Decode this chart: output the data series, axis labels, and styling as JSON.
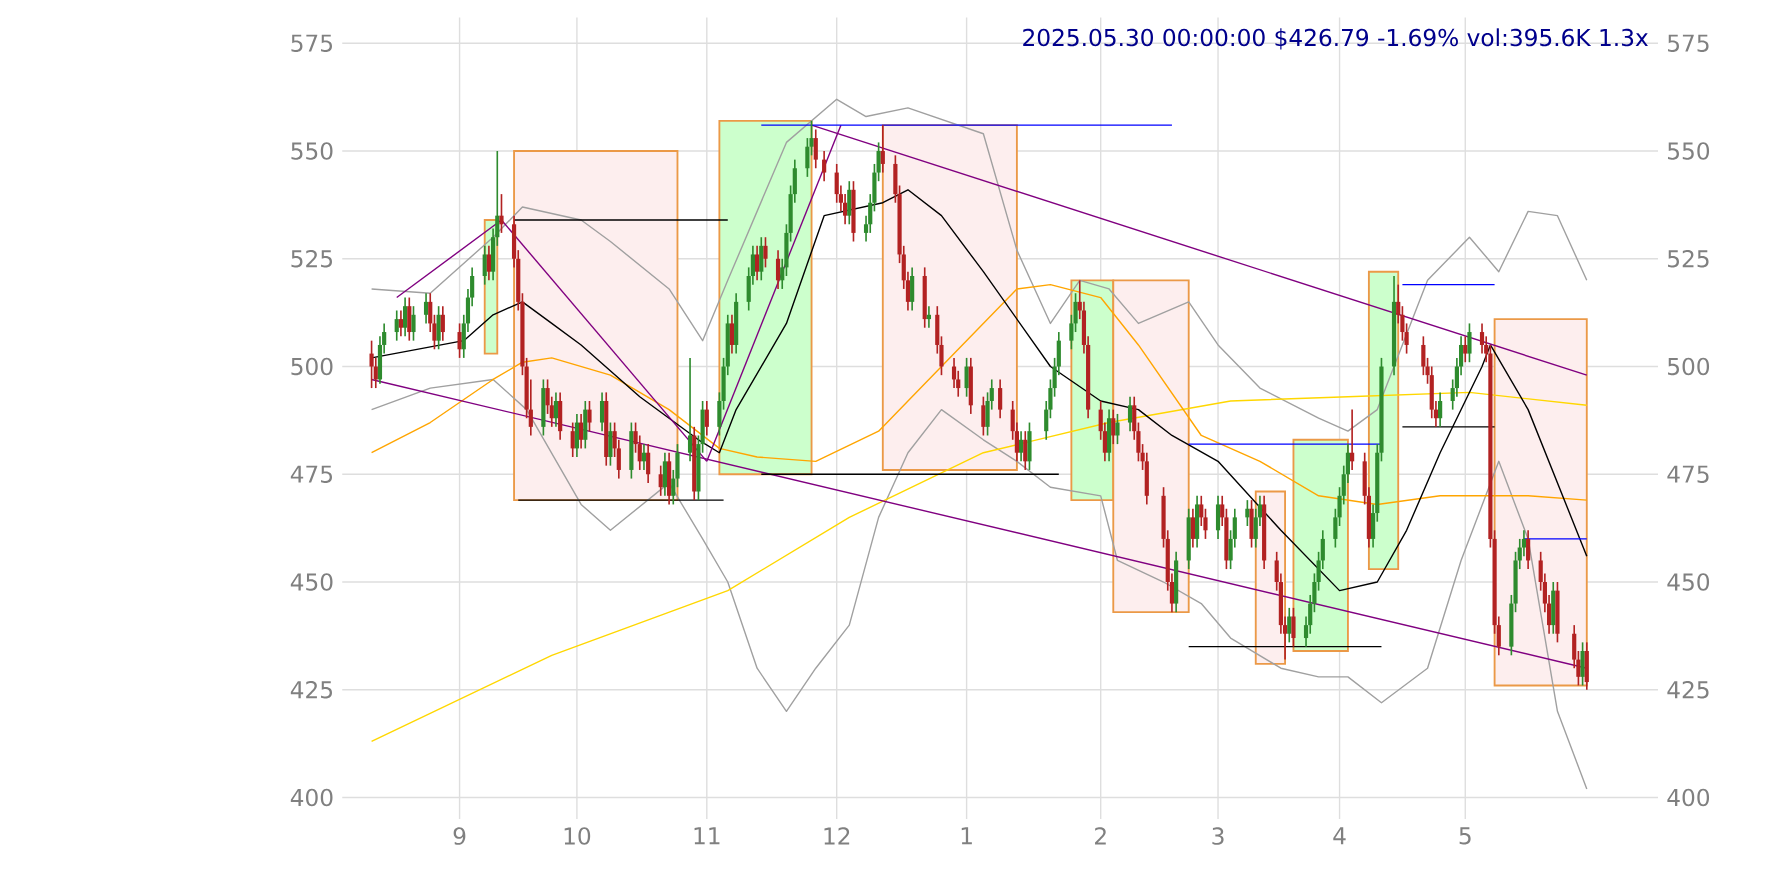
{
  "chart_data": {
    "type": "candlestick",
    "title": "2025.05.30 00:00:00 $426.79 -1.69% vol:395.6K 1.3x",
    "x": [
      "2024-08-13",
      "2024-08-14",
      "2024-08-15",
      "2024-08-16",
      "2024-08-19",
      "2024-08-20",
      "2024-08-21",
      "2024-08-22",
      "2024-08-23",
      "2024-08-26",
      "2024-08-27",
      "2024-08-28",
      "2024-08-29",
      "2024-08-30",
      "2024-09-03",
      "2024-09-04",
      "2024-09-05",
      "2024-09-06",
      "2024-09-09",
      "2024-09-10",
      "2024-09-11",
      "2024-09-12",
      "2024-09-13",
      "2024-09-16",
      "2024-09-17",
      "2024-09-18",
      "2024-09-19",
      "2024-09-20",
      "2024-09-23",
      "2024-09-24",
      "2024-09-25",
      "2024-09-26",
      "2024-09-27",
      "2024-09-30",
      "2024-10-01",
      "2024-10-02",
      "2024-10-03",
      "2024-10-04",
      "2024-10-07",
      "2024-10-08",
      "2024-10-09",
      "2024-10-10",
      "2024-10-11",
      "2024-10-14",
      "2024-10-15",
      "2024-10-16",
      "2024-10-17",
      "2024-10-18",
      "2024-10-21",
      "2024-10-22",
      "2024-10-23",
      "2024-10-24",
      "2024-10-25",
      "2024-10-28",
      "2024-10-29",
      "2024-10-30",
      "2024-10-31",
      "2024-11-01",
      "2024-11-04",
      "2024-11-05",
      "2024-11-06",
      "2024-11-07",
      "2024-11-08",
      "2024-11-11",
      "2024-11-12",
      "2024-11-13",
      "2024-11-14",
      "2024-11-15",
      "2024-11-18",
      "2024-11-19",
      "2024-11-20",
      "2024-11-21",
      "2024-11-22",
      "2024-11-25",
      "2024-11-26",
      "2024-11-27",
      "2024-11-29",
      "2024-12-02",
      "2024-12-03",
      "2024-12-04",
      "2024-12-05",
      "2024-12-06",
      "2024-12-09",
      "2024-12-10",
      "2024-12-11",
      "2024-12-12",
      "2024-12-13",
      "2024-12-16",
      "2024-12-17",
      "2024-12-18",
      "2024-12-19",
      "2024-12-20",
      "2024-12-23",
      "2024-12-24",
      "2024-12-26",
      "2024-12-27",
      "2024-12-30",
      "2024-12-31",
      "2025-01-02",
      "2025-01-03",
      "2025-01-06",
      "2025-01-07",
      "2025-01-08",
      "2025-01-10",
      "2025-01-13",
      "2025-01-14",
      "2025-01-15",
      "2025-01-16",
      "2025-01-17",
      "2025-01-21",
      "2025-01-22",
      "2025-01-23",
      "2025-01-24",
      "2025-01-27",
      "2025-01-28",
      "2025-01-29",
      "2025-01-30",
      "2025-01-31",
      "2025-02-03",
      "2025-02-04",
      "2025-02-05",
      "2025-02-06",
      "2025-02-07",
      "2025-02-10",
      "2025-02-11",
      "2025-02-12",
      "2025-02-13",
      "2025-02-14",
      "2025-02-18",
      "2025-02-19",
      "2025-02-20",
      "2025-02-21",
      "2025-02-24",
      "2025-02-25",
      "2025-02-26",
      "2025-02-27",
      "2025-02-28",
      "2025-03-03",
      "2025-03-04",
      "2025-03-05",
      "2025-03-06",
      "2025-03-07",
      "2025-03-10",
      "2025-03-11",
      "2025-03-12",
      "2025-03-13",
      "2025-03-14",
      "2025-03-17",
      "2025-03-18",
      "2025-03-19",
      "2025-03-20",
      "2025-03-21",
      "2025-03-24",
      "2025-03-25",
      "2025-03-26",
      "2025-03-27",
      "2025-03-28",
      "2025-03-31",
      "2025-04-01",
      "2025-04-02",
      "2025-04-03",
      "2025-04-04",
      "2025-04-07",
      "2025-04-08",
      "2025-04-09",
      "2025-04-10",
      "2025-04-11",
      "2025-04-14",
      "2025-04-15",
      "2025-04-16",
      "2025-04-17",
      "2025-04-21",
      "2025-04-22",
      "2025-04-23",
      "2025-04-24",
      "2025-04-25",
      "2025-04-28",
      "2025-04-29",
      "2025-04-30",
      "2025-05-01",
      "2025-05-02",
      "2025-05-05",
      "2025-05-06",
      "2025-05-07",
      "2025-05-08",
      "2025-05-09",
      "2025-05-12",
      "2025-05-13",
      "2025-05-14",
      "2025-05-15",
      "2025-05-16",
      "2025-05-19",
      "2025-05-20",
      "2025-05-21",
      "2025-05-22",
      "2025-05-23",
      "2025-05-27",
      "2025-05-28",
      "2025-05-29",
      "2025-05-30"
    ],
    "xticks": [
      {
        "value": "2024-09-03",
        "label": "9"
      },
      {
        "value": "2024-10-01",
        "label": "10"
      },
      {
        "value": "2024-11-01",
        "label": "11"
      },
      {
        "value": "2024-12-02",
        "label": "12"
      },
      {
        "value": "2025-01-02",
        "label": "1"
      },
      {
        "value": "2025-02-03",
        "label": "2"
      },
      {
        "value": "2025-03-03",
        "label": "3"
      },
      {
        "value": "2025-04-01",
        "label": "4"
      },
      {
        "value": "2025-05-01",
        "label": "5"
      }
    ],
    "ohlc": [
      [
        503,
        506,
        495,
        500
      ],
      [
        500,
        502,
        495,
        497
      ],
      [
        497,
        507,
        496,
        505
      ],
      [
        505,
        510,
        503,
        508
      ],
      [
        508,
        513,
        506,
        511
      ],
      [
        511,
        513,
        507,
        509
      ],
      [
        509,
        516,
        507,
        514
      ],
      [
        514,
        516,
        506,
        508
      ],
      [
        508,
        514,
        506,
        512
      ],
      [
        512,
        517,
        510,
        515
      ],
      [
        515,
        517,
        508,
        510
      ],
      [
        510,
        512,
        504,
        506
      ],
      [
        506,
        514,
        504,
        512
      ],
      [
        512,
        514,
        506,
        508
      ],
      [
        508,
        510,
        502,
        504
      ],
      [
        504,
        512,
        502,
        510
      ],
      [
        510,
        518,
        508,
        516
      ],
      [
        516,
        523,
        514,
        521
      ],
      [
        521,
        528,
        519,
        526
      ],
      [
        526,
        528,
        520,
        522
      ],
      [
        522,
        532,
        520,
        530
      ],
      [
        530,
        550,
        528,
        535
      ],
      [
        535,
        540,
        531,
        533
      ],
      [
        533,
        535,
        523,
        525
      ],
      [
        525,
        527,
        513,
        515
      ],
      [
        515,
        517,
        498,
        500
      ],
      [
        500,
        502,
        488,
        490
      ],
      [
        490,
        497,
        484,
        486
      ],
      [
        486,
        497,
        484,
        495
      ],
      [
        495,
        497,
        489,
        491
      ],
      [
        491,
        493,
        486,
        488
      ],
      [
        488,
        494,
        486,
        492
      ],
      [
        492,
        494,
        483,
        485
      ],
      [
        485,
        487,
        479,
        481
      ],
      [
        481,
        489,
        479,
        487
      ],
      [
        487,
        489,
        481,
        483
      ],
      [
        483,
        492,
        481,
        490
      ],
      [
        490,
        492,
        485,
        487
      ],
      [
        487,
        494,
        485,
        492
      ],
      [
        492,
        494,
        477,
        479
      ],
      [
        479,
        487,
        477,
        485
      ],
      [
        485,
        487,
        479,
        481
      ],
      [
        481,
        483,
        474,
        476
      ],
      [
        476,
        487,
        474,
        485
      ],
      [
        485,
        487,
        480,
        482
      ],
      [
        482,
        484,
        476,
        478
      ],
      [
        478,
        482,
        476,
        480
      ],
      [
        480,
        482,
        473,
        475
      ],
      [
        475,
        477,
        470,
        472
      ],
      [
        472,
        480,
        470,
        478
      ],
      [
        478,
        480,
        468,
        470
      ],
      [
        470,
        476,
        468,
        474
      ],
      [
        474,
        482,
        472,
        480
      ],
      [
        480,
        502,
        478,
        484
      ],
      [
        484,
        486,
        469,
        471
      ],
      [
        471,
        484,
        469,
        482
      ],
      [
        482,
        492,
        480,
        490
      ],
      [
        490,
        492,
        484,
        486
      ],
      [
        486,
        494,
        484,
        492
      ],
      [
        492,
        502,
        490,
        500
      ],
      [
        500,
        512,
        498,
        510
      ],
      [
        510,
        512,
        503,
        505
      ],
      [
        505,
        517,
        503,
        515
      ],
      [
        515,
        523,
        513,
        521
      ],
      [
        521,
        528,
        519,
        526
      ],
      [
        526,
        528,
        520,
        522
      ],
      [
        522,
        530,
        520,
        528
      ],
      [
        528,
        530,
        523,
        525
      ],
      [
        525,
        527,
        518,
        520
      ],
      [
        520,
        525,
        518,
        523
      ],
      [
        523,
        533,
        521,
        531
      ],
      [
        531,
        542,
        529,
        540
      ],
      [
        540,
        548,
        538,
        546
      ],
      [
        546,
        553,
        544,
        551
      ],
      [
        551,
        557,
        549,
        553
      ],
      [
        553,
        555,
        546,
        548
      ],
      [
        548,
        550,
        543,
        545
      ],
      [
        545,
        547,
        538,
        540
      ],
      [
        540,
        542,
        536,
        538
      ],
      [
        538,
        540,
        533,
        535
      ],
      [
        535,
        543,
        533,
        541
      ],
      [
        541,
        543,
        529,
        531
      ],
      [
        531,
        535,
        529,
        533
      ],
      [
        533,
        540,
        531,
        538
      ],
      [
        538,
        547,
        536,
        545
      ],
      [
        545,
        552,
        543,
        550
      ],
      [
        550,
        556,
        545,
        547
      ],
      [
        547,
        549,
        538,
        540
      ],
      [
        540,
        542,
        524,
        526
      ],
      [
        526,
        528,
        518,
        520
      ],
      [
        520,
        522,
        513,
        515
      ],
      [
        515,
        523,
        513,
        521
      ],
      [
        521,
        523,
        509,
        511
      ],
      [
        511,
        514,
        509,
        512
      ],
      [
        512,
        514,
        503,
        505
      ],
      [
        505,
        507,
        498,
        500
      ],
      [
        500,
        502,
        495,
        497
      ],
      [
        497,
        499,
        493,
        495
      ],
      [
        495,
        502,
        493,
        500
      ],
      [
        500,
        502,
        489,
        491
      ],
      [
        491,
        493,
        484,
        486
      ],
      [
        486,
        494,
        484,
        492
      ],
      [
        492,
        497,
        490,
        495
      ],
      [
        495,
        497,
        488,
        490
      ],
      [
        490,
        492,
        483,
        485
      ],
      [
        485,
        487,
        478,
        480
      ],
      [
        480,
        485,
        478,
        483
      ],
      [
        483,
        485,
        476,
        478
      ],
      [
        478,
        487,
        476,
        485
      ],
      [
        485,
        492,
        483,
        490
      ],
      [
        490,
        497,
        488,
        495
      ],
      [
        495,
        502,
        493,
        500
      ],
      [
        500,
        508,
        498,
        506
      ],
      [
        506,
        512,
        504,
        510
      ],
      [
        510,
        517,
        508,
        515
      ],
      [
        515,
        520,
        511,
        513
      ],
      [
        513,
        515,
        503,
        505
      ],
      [
        505,
        507,
        488,
        490
      ],
      [
        490,
        492,
        483,
        485
      ],
      [
        485,
        487,
        478,
        480
      ],
      [
        480,
        490,
        478,
        488
      ],
      [
        488,
        490,
        482,
        484
      ],
      [
        484,
        489,
        482,
        487
      ],
      [
        487,
        493,
        485,
        491
      ],
      [
        491,
        493,
        483,
        485
      ],
      [
        485,
        487,
        478,
        480
      ],
      [
        480,
        482,
        476,
        478
      ],
      [
        478,
        480,
        468,
        470
      ],
      [
        470,
        472,
        458,
        460
      ],
      [
        460,
        462,
        448,
        450
      ],
      [
        450,
        452,
        443,
        445
      ],
      [
        445,
        457,
        443,
        455
      ],
      [
        455,
        467,
        453,
        465
      ],
      [
        465,
        467,
        458,
        460
      ],
      [
        460,
        470,
        458,
        468
      ],
      [
        468,
        470,
        463,
        465
      ],
      [
        465,
        467,
        460,
        462
      ],
      [
        462,
        470,
        460,
        468
      ],
      [
        468,
        470,
        463,
        465
      ],
      [
        465,
        467,
        453,
        455
      ],
      [
        455,
        462,
        453,
        460
      ],
      [
        460,
        467,
        458,
        465
      ],
      [
        465,
        469,
        463,
        467
      ],
      [
        467,
        469,
        458,
        460
      ],
      [
        460,
        467,
        458,
        465
      ],
      [
        465,
        470,
        463,
        468
      ],
      [
        468,
        470,
        453,
        455
      ],
      [
        455,
        457,
        448,
        450
      ],
      [
        450,
        452,
        438,
        440
      ],
      [
        440,
        442,
        432,
        438
      ],
      [
        438,
        444,
        436,
        442
      ],
      [
        442,
        444,
        435,
        437
      ],
      [
        437,
        442,
        435,
        440
      ],
      [
        440,
        447,
        438,
        445
      ],
      [
        445,
        452,
        443,
        450
      ],
      [
        450,
        457,
        448,
        455
      ],
      [
        455,
        462,
        453,
        460
      ],
      [
        460,
        467,
        458,
        465
      ],
      [
        465,
        472,
        463,
        470
      ],
      [
        470,
        477,
        468,
        475
      ],
      [
        475,
        482,
        473,
        480
      ],
      [
        480,
        490,
        476,
        478
      ],
      [
        478,
        480,
        468,
        470
      ],
      [
        470,
        472,
        458,
        460
      ],
      [
        460,
        468,
        458,
        466
      ],
      [
        466,
        482,
        464,
        480
      ],
      [
        480,
        502,
        478,
        500
      ],
      [
        500,
        521,
        498,
        515
      ],
      [
        515,
        519,
        510,
        512
      ],
      [
        512,
        514,
        506,
        508
      ],
      [
        508,
        510,
        503,
        505
      ],
      [
        505,
        507,
        498,
        500
      ],
      [
        500,
        502,
        496,
        498
      ],
      [
        498,
        500,
        488,
        490
      ],
      [
        490,
        492,
        486,
        488
      ],
      [
        488,
        494,
        486,
        492
      ],
      [
        492,
        497,
        490,
        495
      ],
      [
        495,
        502,
        493,
        500
      ],
      [
        500,
        507,
        498,
        505
      ],
      [
        505,
        507,
        501,
        503
      ],
      [
        503,
        510,
        501,
        508
      ],
      [
        508,
        510,
        503,
        505
      ],
      [
        505,
        507,
        501,
        503
      ],
      [
        503,
        505,
        458,
        460
      ],
      [
        460,
        462,
        438,
        440
      ],
      [
        440,
        442,
        433,
        435
      ],
      [
        435,
        447,
        433,
        445
      ],
      [
        445,
        457,
        443,
        455
      ],
      [
        455,
        460,
        453,
        458
      ],
      [
        458,
        462,
        456,
        460
      ],
      [
        460,
        462,
        453,
        455
      ],
      [
        455,
        457,
        448,
        450
      ],
      [
        450,
        452,
        443,
        445
      ],
      [
        445,
        447,
        438,
        440
      ],
      [
        440,
        450,
        438,
        448
      ],
      [
        448,
        450,
        436,
        438
      ],
      [
        438,
        440,
        430,
        432
      ],
      [
        432,
        434,
        426,
        428
      ],
      [
        428,
        436,
        426,
        434
      ],
      [
        434,
        436,
        425,
        426.79
      ]
    ],
    "colors": [
      "#b22222",
      "#b22222",
      "#2e8b2e",
      "#2e8b2e",
      "#2e8b2e",
      "#b22222",
      "#2e8b2e",
      "#b22222",
      "#2e8b2e",
      "#2e8b2e",
      "#b22222",
      "#b22222",
      "#2e8b2e",
      "#b22222",
      "#b22222",
      "#2e8b2e",
      "#2e8b2e",
      "#2e8b2e",
      "#2e8b2e",
      "#b22222",
      "#2e8b2e",
      "#2e8b2e",
      "#b22222",
      "#b22222",
      "#b22222",
      "#b22222",
      "#b22222",
      "#b22222",
      "#2e8b2e",
      "#b22222",
      "#b22222",
      "#2e8b2e",
      "#b22222",
      "#b22222",
      "#2e8b2e",
      "#b22222",
      "#2e8b2e",
      "#b22222",
      "#2e8b2e",
      "#b22222",
      "#2e8b2e",
      "#b22222",
      "#b22222",
      "#2e8b2e",
      "#b22222",
      "#b22222",
      "#2e8b2e",
      "#b22222",
      "#b22222",
      "#2e8b2e",
      "#b22222",
      "#2e8b2e",
      "#2e8b2e",
      "#2e8b2e",
      "#b22222",
      "#2e8b2e",
      "#2e8b2e",
      "#b22222",
      "#2e8b2e",
      "#2e8b2e",
      "#2e8b2e",
      "#b22222",
      "#2e8b2e",
      "#2e8b2e",
      "#2e8b2e",
      "#b22222",
      "#2e8b2e",
      "#b22222",
      "#b22222",
      "#2e8b2e",
      "#2e8b2e",
      "#2e8b2e",
      "#2e8b2e",
      "#2e8b2e",
      "#2e8b2e",
      "#b22222",
      "#b22222",
      "#b22222",
      "#b22222",
      "#b22222",
      "#2e8b2e",
      "#b22222",
      "#2e8b2e",
      "#2e8b2e",
      "#2e8b2e",
      "#2e8b2e",
      "#b22222",
      "#b22222",
      "#b22222",
      "#b22222",
      "#b22222",
      "#2e8b2e",
      "#b22222",
      "#2e8b2e",
      "#b22222",
      "#b22222",
      "#b22222",
      "#b22222",
      "#2e8b2e",
      "#b22222",
      "#b22222",
      "#2e8b2e",
      "#2e8b2e",
      "#b22222",
      "#b22222",
      "#b22222",
      "#2e8b2e",
      "#b22222",
      "#2e8b2e",
      "#2e8b2e",
      "#2e8b2e",
      "#2e8b2e",
      "#2e8b2e",
      "#2e8b2e",
      "#2e8b2e",
      "#b22222",
      "#b22222",
      "#b22222",
      "#b22222",
      "#b22222",
      "#2e8b2e",
      "#b22222",
      "#2e8b2e",
      "#2e8b2e",
      "#b22222",
      "#b22222",
      "#b22222",
      "#b22222",
      "#b22222",
      "#b22222",
      "#b22222",
      "#2e8b2e",
      "#2e8b2e",
      "#b22222",
      "#2e8b2e",
      "#b22222",
      "#b22222",
      "#2e8b2e",
      "#b22222",
      "#b22222",
      "#2e8b2e",
      "#2e8b2e",
      "#2e8b2e",
      "#b22222",
      "#2e8b2e",
      "#2e8b2e",
      "#b22222",
      "#b22222",
      "#b22222",
      "#b22222",
      "#2e8b2e",
      "#b22222",
      "#2e8b2e",
      "#2e8b2e",
      "#2e8b2e",
      "#2e8b2e",
      "#2e8b2e",
      "#2e8b2e",
      "#2e8b2e",
      "#2e8b2e",
      "#2e8b2e",
      "#b22222",
      "#b22222",
      "#b22222",
      "#2e8b2e",
      "#2e8b2e",
      "#2e8b2e",
      "#2e8b2e",
      "#b22222",
      "#b22222",
      "#b22222",
      "#b22222",
      "#b22222",
      "#b22222",
      "#b22222",
      "#2e8b2e",
      "#2e8b2e",
      "#2e8b2e",
      "#2e8b2e",
      "#b22222",
      "#2e8b2e",
      "#b22222",
      "#b22222",
      "#b22222",
      "#b22222",
      "#b22222",
      "#2e8b2e",
      "#2e8b2e",
      "#2e8b2e",
      "#2e8b2e",
      "#b22222",
      "#b22222",
      "#b22222",
      "#b22222",
      "#2e8b2e",
      "#b22222",
      "#b22222",
      "#b22222",
      "#2e8b2e",
      "#b22222"
    ],
    "series": [
      {
        "type": "line",
        "color": "#ccffcc",
        "x": [
          "2024-09-09",
          "2024-09-12"
        ],
        "lower": [
          503,
          503
        ],
        "upper": [
          534,
          534
        ],
        "values": [
          null,
          null
        ]
      },
      {
        "type": "line",
        "color": "#fdeeee",
        "x": [
          "2024-09-16",
          "2024-10-25"
        ],
        "lower": [
          469,
          469
        ],
        "upper": [
          550,
          550
        ],
        "values": [
          null,
          null
        ]
      },
      {
        "type": "line",
        "color": "#ccffcc",
        "x": [
          "2024-11-04",
          "2024-11-26"
        ],
        "lower": [
          475,
          475
        ],
        "upper": [
          557,
          557
        ],
        "values": [
          null,
          null
        ]
      },
      {
        "type": "line",
        "color": "#fdeeee",
        "x": [
          "2024-12-13",
          "2025-01-14"
        ],
        "lower": [
          476,
          476
        ],
        "upper": [
          556,
          556
        ],
        "values": [
          null,
          null
        ]
      },
      {
        "type": "line",
        "color": "#ccffcc",
        "x": [
          "2025-01-27",
          "2025-02-06"
        ],
        "lower": [
          469,
          469
        ],
        "upper": [
          520,
          520
        ],
        "values": [
          null,
          null
        ]
      },
      {
        "type": "line",
        "color": "#fdeeee",
        "x": [
          "2025-02-06",
          "2025-02-24"
        ],
        "lower": [
          443,
          443
        ],
        "upper": [
          520,
          520
        ],
        "values": [
          null,
          null
        ]
      },
      {
        "type": "line",
        "color": "#fdeeee",
        "x": [
          "2025-03-12",
          "2025-03-19"
        ],
        "lower": [
          431,
          431
        ],
        "upper": [
          471,
          471
        ],
        "values": [
          null,
          null
        ]
      },
      {
        "type": "line",
        "color": "#ccffcc",
        "x": [
          "2025-03-21",
          "2025-04-03"
        ],
        "lower": [
          434,
          434
        ],
        "upper": [
          483,
          483
        ],
        "values": [
          null,
          null
        ]
      },
      {
        "type": "line",
        "color": "#ccffcc",
        "x": [
          "2025-04-08",
          "2025-04-15"
        ],
        "lower": [
          453,
          453
        ],
        "upper": [
          522,
          522
        ],
        "values": [
          null,
          null
        ]
      },
      {
        "type": "line",
        "color": "#fdeeee",
        "x": [
          "2025-05-08",
          "2025-05-30"
        ],
        "lower": [
          426,
          426
        ],
        "upper": [
          511,
          511
        ],
        "values": [
          null,
          null
        ]
      },
      {
        "type": "line",
        "color": "#a0a0a0",
        "x": [
          "2024-08-13",
          "2024-08-27",
          "2024-09-11",
          "2024-09-18",
          "2024-10-02",
          "2024-10-09",
          "2024-10-23",
          "2024-10-31",
          "2024-11-06",
          "2024-11-20",
          "2024-12-02",
          "2024-12-09",
          "2024-12-19",
          "2025-01-06",
          "2025-01-14",
          "2025-01-22",
          "2025-01-29",
          "2025-02-05",
          "2025-02-12",
          "2025-02-24",
          "2025-03-03",
          "2025-03-13",
          "2025-03-27",
          "2025-04-03",
          "2025-04-10",
          "2025-04-22",
          "2025-05-02",
          "2025-05-09",
          "2025-05-16",
          "2025-05-23",
          "2025-05-30"
        ],
        "values": [
          518,
          517,
          530,
          537,
          534,
          529,
          518,
          506,
          520,
          552,
          562,
          558,
          560,
          554,
          527,
          510,
          520,
          518,
          510,
          515,
          505,
          495,
          488,
          485,
          490,
          520,
          530,
          522,
          536,
          535,
          520
        ]
      },
      {
        "type": "line",
        "color": "#a0a0a0",
        "x": [
          "2024-08-13",
          "2024-08-27",
          "2024-09-11",
          "2024-09-19",
          "2024-10-02",
          "2024-10-09",
          "2024-10-23",
          "2024-10-31",
          "2024-11-06",
          "2024-11-13",
          "2024-11-20",
          "2024-11-27",
          "2024-12-05",
          "2024-12-12",
          "2024-12-19",
          "2024-12-27",
          "2025-01-06",
          "2025-01-14",
          "2025-01-22",
          "2025-02-03",
          "2025-02-07",
          "2025-02-18",
          "2025-02-27",
          "2025-03-06",
          "2025-03-18",
          "2025-03-27",
          "2025-04-03",
          "2025-04-11",
          "2025-04-22",
          "2025-04-30",
          "2025-05-09",
          "2025-05-16",
          "2025-05-23",
          "2025-05-30"
        ],
        "values": [
          490,
          495,
          497,
          490,
          468,
          462,
          473,
          460,
          450,
          430,
          420,
          430,
          440,
          465,
          480,
          490,
          483,
          478,
          472,
          470,
          455,
          450,
          445,
          437,
          430,
          428,
          428,
          422,
          430,
          455,
          478,
          460,
          420,
          402
        ]
      },
      {
        "type": "line",
        "color": "#ffd700",
        "x": [
          "2024-08-13",
          "2024-09-25",
          "2024-11-06",
          "2024-12-05",
          "2025-01-06",
          "2025-02-05",
          "2025-03-06",
          "2025-04-03",
          "2025-05-02",
          "2025-05-30"
        ],
        "values": [
          413,
          433,
          448,
          465,
          480,
          487,
          492,
          493,
          494,
          491
        ]
      },
      {
        "type": "line",
        "color": "#ffa500",
        "x": [
          "2024-08-13",
          "2024-08-27",
          "2024-09-11",
          "2024-09-18",
          "2024-09-25",
          "2024-10-09",
          "2024-10-23",
          "2024-11-04",
          "2024-11-13",
          "2024-11-27",
          "2024-12-12",
          "2024-12-27",
          "2025-01-14",
          "2025-01-22",
          "2025-02-03",
          "2025-02-12",
          "2025-02-27",
          "2025-03-13",
          "2025-03-27",
          "2025-04-10",
          "2025-04-25",
          "2025-05-16",
          "2025-05-30"
        ],
        "values": [
          480,
          487,
          497,
          501,
          502,
          498,
          490,
          481,
          479,
          478,
          485,
          500,
          518,
          519,
          516,
          505,
          484,
          478,
          470,
          468,
          470,
          470,
          469
        ]
      },
      {
        "type": "line",
        "color": "#000000",
        "x": [
          "2024-08-13",
          "2024-09-04",
          "2024-09-11",
          "2024-09-18",
          "2024-09-25",
          "2024-10-02",
          "2024-10-16",
          "2024-10-30",
          "2024-11-04",
          "2024-11-08",
          "2024-11-20",
          "2024-11-29",
          "2024-12-13",
          "2024-12-19",
          "2024-12-27",
          "2025-01-06",
          "2025-01-22",
          "2025-02-03",
          "2025-02-12",
          "2025-02-20",
          "2025-03-03",
          "2025-03-18",
          "2025-04-01",
          "2025-04-10",
          "2025-04-17",
          "2025-04-25",
          "2025-05-05",
          "2025-05-07",
          "2025-05-16",
          "2025-05-30"
        ],
        "values": [
          502,
          506,
          512,
          515,
          510,
          505,
          493,
          483,
          480,
          490,
          510,
          535,
          538,
          541,
          535,
          522,
          500,
          492,
          490,
          484,
          478,
          462,
          448,
          450,
          462,
          480,
          500,
          505,
          490,
          456
        ]
      },
      {
        "type": "line",
        "color": "#800080",
        "x": [
          "2024-08-19",
          "2024-09-13"
        ],
        "values": [
          516,
          534
        ]
      },
      {
        "type": "line",
        "color": "#800080",
        "x": [
          "2024-09-13",
          "2024-11-01"
        ],
        "values": [
          534,
          478
        ]
      },
      {
        "type": "line",
        "color": "#800080",
        "x": [
          "2024-11-01",
          "2024-12-03"
        ],
        "values": [
          478,
          556
        ]
      },
      {
        "type": "line",
        "color": "#800080",
        "x": [
          "2024-08-13",
          "2025-05-30"
        ],
        "values": [
          497,
          430
        ]
      },
      {
        "type": "line",
        "color": "#800080",
        "x": [
          "2024-11-26",
          "2025-05-30"
        ],
        "values": [
          556,
          498
        ]
      },
      {
        "type": "line",
        "color": "#000000",
        "x": [
          "2024-09-16",
          "2024-11-06"
        ],
        "values": [
          534,
          534
        ]
      },
      {
        "type": "line",
        "color": "#000000",
        "x": [
          "2024-09-17",
          "2024-11-05"
        ],
        "values": [
          469,
          469
        ]
      },
      {
        "type": "line",
        "color": "#000000",
        "x": [
          "2024-11-14",
          "2025-01-24"
        ],
        "values": [
          475,
          475
        ]
      },
      {
        "type": "line",
        "color": "#000000",
        "x": [
          "2025-02-24",
          "2025-04-11"
        ],
        "values": [
          435,
          435
        ]
      },
      {
        "type": "line",
        "color": "#000000",
        "x": [
          "2025-04-16",
          "2025-05-08"
        ],
        "values": [
          486,
          486
        ]
      },
      {
        "type": "line",
        "color": "#0000ff",
        "x": [
          "2024-11-14",
          "2025-02-20"
        ],
        "values": [
          556,
          556
        ]
      },
      {
        "type": "line",
        "color": "#0000ff",
        "x": [
          "2025-02-24",
          "2025-04-11"
        ],
        "values": [
          482,
          482
        ]
      },
      {
        "type": "line",
        "color": "#0000ff",
        "x": [
          "2025-04-16",
          "2025-05-08"
        ],
        "values": [
          519,
          519
        ]
      },
      {
        "type": "line",
        "color": "#0000ff",
        "x": [
          "2025-05-15",
          "2025-05-30"
        ],
        "values": [
          460,
          460
        ]
      }
    ],
    "xlim": [
      "2024-08-06",
      "2025-06-16"
    ],
    "ylim": [
      395,
      581
    ],
    "yticks": [
      400,
      425,
      450,
      475,
      500,
      525,
      550,
      575
    ],
    "y2lim": [
      395,
      581
    ],
    "y2ticks": [
      400,
      425,
      450,
      475,
      500,
      525,
      550,
      575
    ],
    "grid": true
  }
}
